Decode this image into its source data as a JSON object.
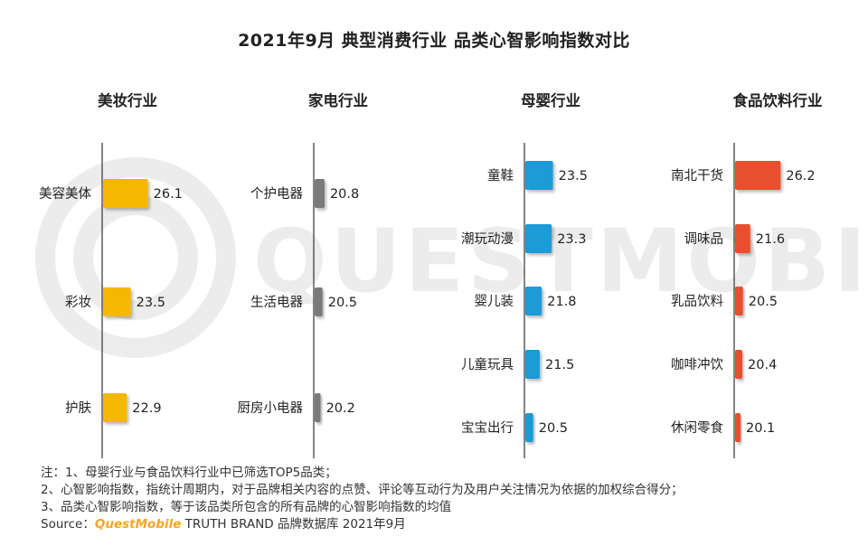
{
  "title": "2021年9月 典型消费行业 品类心智影响指数对比",
  "watermark": "QUESTMOBILE",
  "chart_data": [
    {
      "type": "bar",
      "orientation": "horizontal",
      "title": "美妆行业",
      "color": "#f5b800",
      "categories": [
        "美容美体",
        "彩妆",
        "护肤"
      ],
      "values": [
        26.1,
        23.5,
        22.9
      ]
    },
    {
      "type": "bar",
      "orientation": "horizontal",
      "title": "家电行业",
      "color": "#7a7a7a",
      "categories": [
        "个护电器",
        "生活电器",
        "厨房小电器"
      ],
      "values": [
        20.8,
        20.5,
        20.2
      ]
    },
    {
      "type": "bar",
      "orientation": "horizontal",
      "title": "母婴行业",
      "color": "#1f9bd7",
      "categories": [
        "童鞋",
        "潮玩动漫",
        "婴儿装",
        "儿童玩具",
        "宝宝出行"
      ],
      "values": [
        23.5,
        23.3,
        21.8,
        21.5,
        20.5
      ]
    },
    {
      "type": "bar",
      "orientation": "horizontal",
      "title": "食品饮料行业",
      "color": "#e8502e",
      "categories": [
        "南北干货",
        "调味品",
        "乳品饮料",
        "咖啡冲饮",
        "休闲零食"
      ],
      "values": [
        26.2,
        21.6,
        20.5,
        20.4,
        20.1
      ]
    }
  ],
  "notes": {
    "line1": "注：1、母婴行业与食品饮料行业中已筛选TOP5品类；",
    "line2": "2、心智影响指数，指统计周期内，对于品牌相关内容的点赞、评论等互动行为及用户关注情况为依据的加权综合得分；",
    "line3": "3、品类心智影响指数，等于该品类所包含的所有品牌的心智影响指数的均值",
    "source_label": "Source：",
    "source_brand": "QuestMobile",
    "source_rest": " TRUTH BRAND 品牌数据库 2021年9月"
  }
}
